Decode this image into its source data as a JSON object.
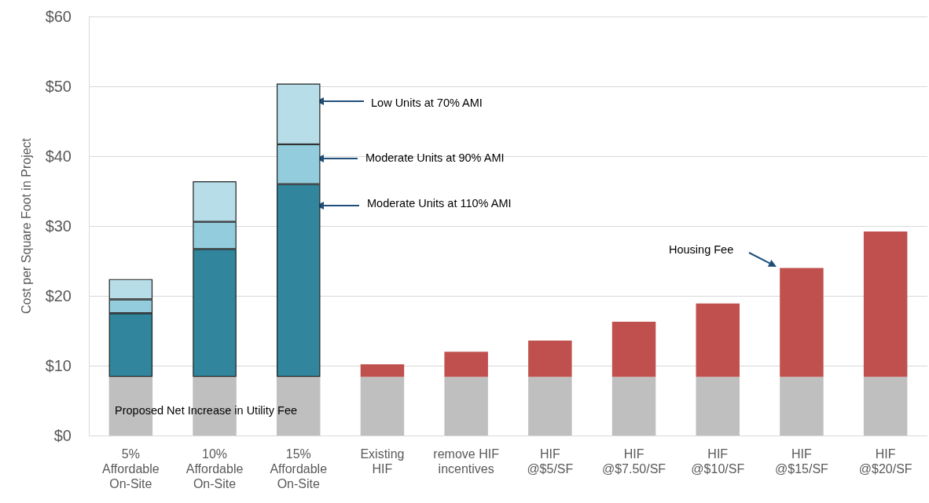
{
  "chart_data": {
    "type": "bar",
    "stacked": true,
    "ylabel": "Cost per Square Foot in Project",
    "categories": [
      "5%\nAffordable\nOn-Site",
      "10%\nAffordable\nOn-Site",
      "15%\nAffordable\nOn-Site",
      "Existing\nHIF",
      "remove HIF\nincentives",
      "HIF\n@$5/SF",
      "HIF\n@$7.50/SF",
      "HIF\n@$10/SF",
      "HIF\n@$15/SF",
      "HIF\n@$20/SF"
    ],
    "series": [
      {
        "color": "#bfbfbf",
        "values": [
          8.4,
          8.4,
          8.4,
          8.4,
          8.4,
          8.4,
          8.4,
          8.4,
          8.4,
          8.4
        ]
      },
      {
        "color": "#31859c",
        "values": [
          9.1,
          18.3,
          27.6,
          null,
          null,
          null,
          null,
          null,
          null,
          null
        ]
      },
      {
        "color": "#93cddd",
        "values": [
          2.0,
          3.9,
          5.7,
          null,
          null,
          null,
          null,
          null,
          null,
          null
        ]
      },
      {
        "color": "#b7dee8",
        "values": [
          2.9,
          5.8,
          8.7,
          null,
          null,
          null,
          null,
          null,
          null,
          null
        ]
      },
      {
        "color": "#c0504d",
        "values": [
          null,
          null,
          null,
          1.8,
          3.6,
          5.2,
          7.9,
          10.5,
          15.6,
          20.8
        ]
      }
    ],
    "ylim": [
      0,
      60
    ],
    "yticks": [
      {
        "value": 0,
        "label": "$0"
      },
      {
        "value": 10,
        "label": "$10"
      },
      {
        "value": 20,
        "label": "$20"
      },
      {
        "value": 30,
        "label": "$30"
      },
      {
        "value": 40,
        "label": "$40"
      },
      {
        "value": 50,
        "label": "$50"
      },
      {
        "value": 60,
        "label": "$60"
      }
    ],
    "grid": "y",
    "annotations": [
      "Low Units at 70% AMI",
      "Moderate Units at 90% AMI",
      "Moderate Units at 110% AMI",
      "Housing Fee",
      "Proposed Net Increase in Utility Fee"
    ]
  }
}
